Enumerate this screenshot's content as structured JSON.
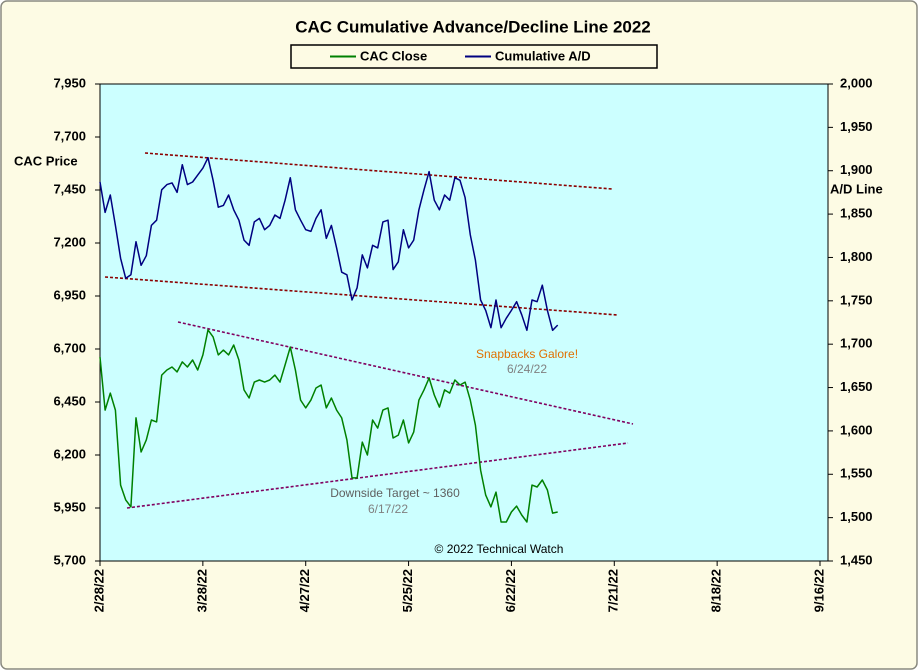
{
  "chart_data": {
    "type": "line",
    "title": "CAC Cumulative  Advance/Decline Line 2022",
    "y_label": "CAC Price",
    "y2_label": "A/D Line",
    "credit": "© 2022 Technical Watch",
    "annotations": [
      {
        "text": "Snapbacks Galore!",
        "date": "6/24/22"
      },
      {
        "text": "Downside Target ~ 1360",
        "date": "6/17/22"
      }
    ],
    "categories": [
      "2/28/22",
      null,
      null,
      null,
      null,
      null,
      null,
      null,
      null,
      null,
      null,
      null,
      null,
      null,
      null,
      null,
      null,
      null,
      null,
      null,
      "3/28/22",
      null,
      null,
      null,
      null,
      null,
      null,
      null,
      null,
      null,
      null,
      null,
      null,
      null,
      null,
      null,
      null,
      null,
      null,
      null,
      "4/27/22",
      null,
      null,
      null,
      null,
      null,
      null,
      null,
      null,
      null,
      null,
      null,
      null,
      null,
      null,
      null,
      null,
      null,
      null,
      null,
      "5/25/22",
      null,
      null,
      null,
      null,
      null,
      null,
      null,
      null,
      null,
      null,
      null,
      null,
      null,
      null,
      null,
      null,
      null,
      null,
      null,
      "6/22/22",
      null,
      null,
      null,
      null,
      null,
      null,
      null,
      null,
      null,
      null,
      null,
      null,
      null,
      null,
      null,
      null,
      null,
      null,
      null,
      "7/21/22",
      null,
      null,
      null,
      null,
      null,
      null,
      null,
      null,
      null,
      null,
      null,
      null,
      null,
      null,
      null,
      null,
      null,
      null,
      null,
      "8/18/22",
      null,
      null,
      null,
      null,
      null,
      null,
      null,
      null,
      null,
      null,
      null,
      null,
      null,
      null,
      null,
      null,
      null,
      null,
      null,
      "9/16/22"
    ],
    "series": [
      {
        "name": "CAC Close",
        "color": "#008000",
        "values": [
          6662,
          6412,
          6492,
          6412,
          6058,
          5988,
          5955,
          6375,
          6214,
          6271,
          6365,
          6356,
          6577,
          6601,
          6615,
          6592,
          6639,
          6615,
          6648,
          6601,
          6672,
          6790,
          6757,
          6672,
          6695,
          6672,
          6719,
          6648,
          6507,
          6469,
          6544,
          6554,
          6544,
          6554,
          6577,
          6544,
          6625,
          6709,
          6601,
          6459,
          6422,
          6459,
          6516,
          6530,
          6422,
          6469,
          6412,
          6375,
          6271,
          6092,
          6092,
          6261,
          6200,
          6365,
          6327,
          6412,
          6422,
          6280,
          6294,
          6365,
          6257,
          6308,
          6459,
          6507,
          6563,
          6483,
          6426,
          6507,
          6492,
          6554,
          6530,
          6544,
          6459,
          6341,
          6129,
          6011,
          5955,
          6025,
          5884,
          5884,
          5931,
          5959,
          5917,
          5884,
          6058,
          6049,
          6082,
          6035,
          5926,
          5931,
          null,
          null,
          null,
          null,
          null,
          null,
          null,
          null,
          null,
          null,
          null,
          null,
          null,
          null,
          null,
          null,
          null,
          null,
          null,
          null,
          null,
          null,
          null,
          null,
          null,
          null,
          null,
          null,
          null,
          null,
          null,
          null,
          null,
          null,
          null,
          null,
          null,
          null,
          null,
          null,
          null,
          null,
          null,
          null,
          null,
          null,
          null,
          null,
          null,
          null,
          null
        ]
      },
      {
        "name": "Cumulative A/D",
        "color": "#000080",
        "axis": "y2",
        "values": [
          1887,
          1852,
          1872,
          1837,
          1799,
          1776,
          1780,
          1818,
          1791,
          1802,
          1837,
          1843,
          1878,
          1884,
          1886,
          1875,
          1907,
          1884,
          1887,
          1895,
          1903,
          1915,
          1889,
          1858,
          1860,
          1872,
          1855,
          1843,
          1820,
          1814,
          1841,
          1845,
          1832,
          1837,
          1849,
          1845,
          1866,
          1892,
          1855,
          1843,
          1832,
          1830,
          1845,
          1855,
          1822,
          1837,
          1811,
          1783,
          1780,
          1751,
          1765,
          1803,
          1788,
          1814,
          1811,
          1841,
          1843,
          1786,
          1795,
          1832,
          1811,
          1820,
          1855,
          1878,
          1899,
          1866,
          1855,
          1872,
          1866,
          1892,
          1889,
          1869,
          1826,
          1797,
          1751,
          1739,
          1719,
          1751,
          1719,
          1730,
          1739,
          1749,
          1734,
          1716,
          1751,
          1749,
          1768,
          1739,
          1716,
          1722,
          null,
          null,
          null,
          null,
          null,
          null,
          null,
          null,
          null,
          null,
          null,
          null,
          null,
          null,
          null,
          null,
          null,
          null,
          null,
          null,
          null,
          null,
          null,
          null,
          null,
          null,
          null,
          null,
          null,
          null,
          null,
          null,
          null,
          null,
          null,
          null,
          null,
          null,
          null,
          null,
          null,
          null,
          null,
          null,
          null,
          null,
          null,
          null,
          null,
          null,
          null
        ]
      }
    ],
    "ylim": [
      5700,
      7950
    ],
    "yticks": [
      {
        "value": 5700,
        "label": "5,700"
      },
      {
        "value": 5950,
        "label": "5,950"
      },
      {
        "value": 6200,
        "label": "6,200"
      },
      {
        "value": 6450,
        "label": "6,450"
      },
      {
        "value": 6700,
        "label": "6,700"
      },
      {
        "value": 6950,
        "label": "6,950"
      },
      {
        "value": 7200,
        "label": "7,200"
      },
      {
        "value": 7450,
        "label": "7,450"
      },
      {
        "value": 7700,
        "label": "7,700"
      },
      {
        "value": 7950,
        "label": "7,950"
      }
    ],
    "y2lim": [
      1450,
      2000
    ],
    "y2ticks": [
      {
        "value": 1450,
        "label": "1,450"
      },
      {
        "value": 1500,
        "label": "1,500"
      },
      {
        "value": 1550,
        "label": "1,550"
      },
      {
        "value": 1600,
        "label": "1,600"
      },
      {
        "value": 1650,
        "label": "1,650"
      },
      {
        "value": 1700,
        "label": "1,700"
      },
      {
        "value": 1750,
        "label": "1,750"
      },
      {
        "value": 1800,
        "label": "1,800"
      },
      {
        "value": 1850,
        "label": "1,850"
      },
      {
        "value": 1900,
        "label": "1,900"
      },
      {
        "value": 1950,
        "label": "1,950"
      },
      {
        "value": 2000,
        "label": "2,000"
      }
    ],
    "legend": "top"
  }
}
